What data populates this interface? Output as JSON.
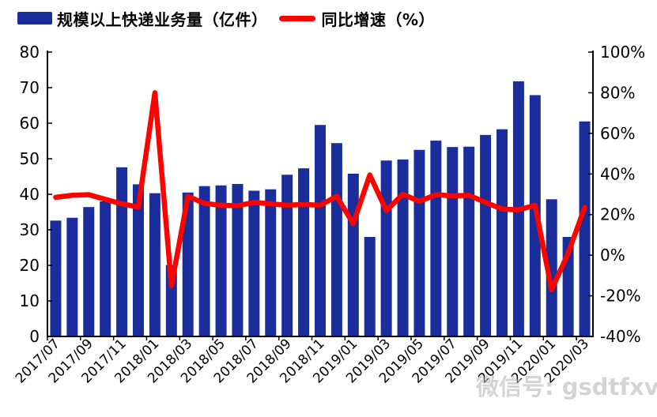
{
  "legend": [
    {
      "label": "规模以上快递业务量（亿件）",
      "type": "bar",
      "color": "#1B2D9B"
    },
    {
      "label": "同比增速（%）",
      "type": "line",
      "color": "#FA0400"
    }
  ],
  "chart_data": {
    "type": "combo",
    "title": "",
    "grid": false,
    "legend_position": "top",
    "categories": [
      "2017/07",
      "2017/08",
      "2017/09",
      "2017/10",
      "2017/11",
      "2017/12",
      "2018/01",
      "2018/02",
      "2018/03",
      "2018/04",
      "2018/05",
      "2018/06",
      "2018/07",
      "2018/08",
      "2018/09",
      "2018/10",
      "2018/11",
      "2018/12",
      "2019/01",
      "2019/02",
      "2019/03",
      "2019/04",
      "2019/05",
      "2019/06",
      "2019/07",
      "2019/08",
      "2019/09",
      "2019/10",
      "2019/11",
      "2019/12",
      "2020/01",
      "2020/02",
      "2020/03"
    ],
    "series": [
      {
        "name": "规模以上快递业务量（亿件）",
        "type": "bar",
        "axis": "left",
        "color": "#1B2D9B",
        "values": [
          32.6,
          33.4,
          36.4,
          38.0,
          47.6,
          42.8,
          40.3,
          20.1,
          40.5,
          42.3,
          42.5,
          42.9,
          41.0,
          41.4,
          45.5,
          47.3,
          59.5,
          54.4,
          45.8,
          28.0,
          49.5,
          49.8,
          52.5,
          55.1,
          53.3,
          53.4,
          56.7,
          58.3,
          71.8,
          67.9,
          38.6,
          28.0,
          60.5
        ]
      },
      {
        "name": "同比增速（%）",
        "type": "line",
        "axis": "right",
        "color": "#FA0400",
        "values": [
          28.5,
          29.5,
          29.8,
          27.5,
          25.3,
          23.7,
          80,
          -15,
          29,
          25.5,
          24.6,
          24.4,
          26,
          25.3,
          24.6,
          25,
          24.6,
          29,
          15.5,
          39.5,
          22,
          30,
          26.5,
          29.8,
          29.2,
          29.5,
          26,
          22.7,
          22.3,
          24.6,
          -17,
          1,
          23.5
        ]
      }
    ],
    "left_axis": {
      "min": 0,
      "max": 80,
      "tick_values": [
        0,
        10,
        20,
        30,
        40,
        50,
        60,
        70,
        80
      ],
      "tick_labels": [
        "0",
        "10",
        "20",
        "30",
        "40",
        "50",
        "60",
        "70",
        "80"
      ]
    },
    "right_axis": {
      "min": -40,
      "max": 100,
      "tick_values": [
        -40,
        -20,
        0,
        20,
        40,
        60,
        80,
        100
      ],
      "tick_labels": [
        "-40%",
        "-20%",
        "0%",
        "20%",
        "40%",
        "60%",
        "80%",
        "100%"
      ]
    },
    "x_tick_labels": [
      "2017/07",
      "2017/09",
      "2017/11",
      "2018/01",
      "2018/03",
      "2018/05",
      "2018/07",
      "2018/09",
      "2018/11",
      "2019/01",
      "2019/03",
      "2019/05",
      "2019/07",
      "2019/09",
      "2019/11",
      "2020/01",
      "2020/03"
    ]
  },
  "watermark": {
    "text": "微信号: gsdtfxv"
  },
  "colors": {
    "background": "#FFFFFF",
    "axis": "#000000",
    "tick_text": "#000000",
    "watermark": "#969696"
  }
}
